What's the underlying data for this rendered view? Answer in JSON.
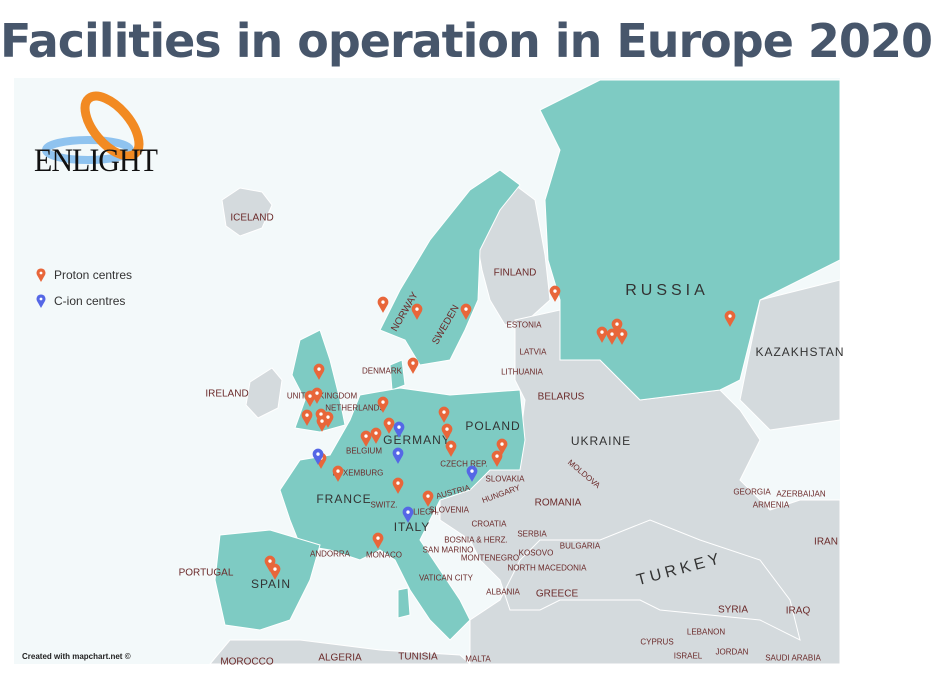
{
  "title": "Facilities in operation in Europe 2020",
  "logo_text": "ENLIGHT",
  "credit": "Created with mapchart.net ©",
  "legend": [
    {
      "label": "Proton centres",
      "color": "#e8663a",
      "icon": "map-pin-icon"
    },
    {
      "label": "C-ion centres",
      "color": "#5567e6",
      "icon": "map-pin-icon"
    }
  ],
  "colors": {
    "highlight_country": "#7ecbc3",
    "other_country": "#d4dadd",
    "sea": "#f3f9fa",
    "proton": "#e8663a",
    "cion": "#5567e6"
  },
  "labels": {
    "iceland": "ICELAND",
    "finland": "FINLAND",
    "russia": "RUSSIA",
    "norway": "NORWAY",
    "sweden": "SWEDEN",
    "estonia": "ESTONIA",
    "latvia": "LATVIA",
    "lithuania": "LITHUANIA",
    "denmark": "DENMARK",
    "ireland": "IRELAND",
    "uk": "UNITED KINGDOM",
    "netherlands": "NETHERLANDS",
    "belgium": "BELGIUM",
    "luxemburg": "LUXEMBURG",
    "germany": "GERMANY",
    "poland": "POLAND",
    "belarus": "BELARUS",
    "ukraine": "UKRAINE",
    "kazakhstan": "KAZAKHSTAN",
    "czech": "CZECH REP.",
    "slovakia": "SLOVAKIA",
    "austria": "AUSTRIA",
    "hungary": "HUNGARY",
    "moldova": "MOLDOVA",
    "romania": "ROMANIA",
    "france": "FRANCE",
    "switz": "SWITZ.",
    "italy": "ITALY",
    "slovenia": "SLOVENIA",
    "croatia": "CROATIA",
    "bosnia": "BOSNIA & HERZ.",
    "serbia": "SERBIA",
    "bulgaria": "BULGARIA",
    "montenegro": "MONTENEGRO",
    "kosovo": "KOSOVO",
    "north_macedonia": "NORTH MACEDONIA",
    "albania": "ALBANIA",
    "greece": "GREECE",
    "turkey": "TURKEY",
    "georgia": "GEORGIA",
    "armenia": "ARMENIA",
    "azerbaijan": "AZERBAIJAN",
    "iran": "IRAN",
    "syria": "SYRIA",
    "iraq": "IRAQ",
    "lebanon": "LEBANON",
    "cyprus": "CYPRUS",
    "israel": "ISRAEL",
    "jordan": "JORDAN",
    "saudi": "SAUDI ARABIA",
    "portugal": "PORTUGAL",
    "spain": "SPAIN",
    "andorra": "ANDORRA",
    "monaco": "MONACO",
    "san_marino": "SAN MARINO",
    "vatican": "VATICAN CITY",
    "morocco": "MOROCCO",
    "algeria": "ALGERIA",
    "tunisia": "TUNISIA",
    "malta": "MALTA",
    "liech": "LIECH."
  },
  "marker_counts": {
    "proton": 33,
    "cion": 5
  }
}
